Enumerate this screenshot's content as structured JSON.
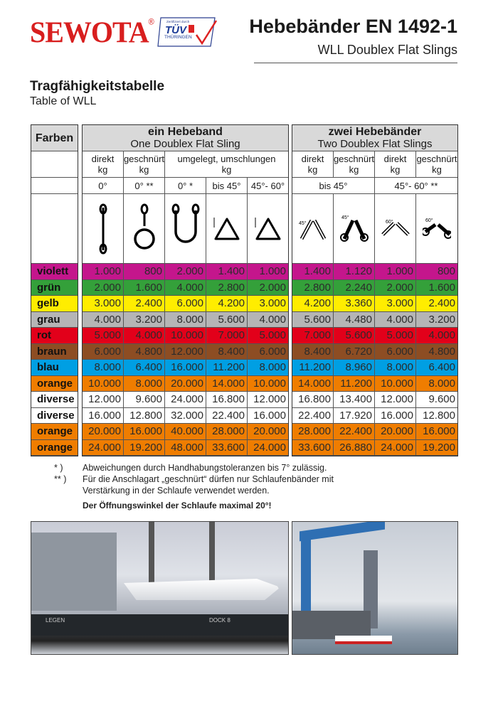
{
  "header": {
    "brand": "SEWOTA",
    "registered": "®",
    "cert_text": "Zertifiziert durch TÜV THÜRINGEN",
    "title": "Hebebänder EN 1492-1",
    "subtitle": "WLL Doublex Flat Slings"
  },
  "section": {
    "title": "Tragfähigkeitstabelle",
    "subtitle": "Table of WLL"
  },
  "table": {
    "farben_label": "Farben",
    "one": {
      "de": "ein Hebeband",
      "en": "One Doublex Flat Sling",
      "cols": [
        "direkt\nkg",
        "geschnürt\nkg",
        "umgelegt, umschlungen\nkg"
      ],
      "angles": [
        "0°",
        "0° **",
        "0° *",
        "bis 45°",
        "45°- 60°"
      ]
    },
    "two": {
      "de": "zwei Hebebänder",
      "en": "Two Doublex Flat Slings",
      "cols": [
        "direkt\nkg",
        "geschnürt\nkg",
        "direkt\nkg",
        "geschnürt\nkg"
      ],
      "angles": [
        "bis 45°",
        "45°- 60° **"
      ]
    },
    "icons": [
      "sling-straight-icon",
      "sling-choked-icon",
      "sling-basket-icon",
      "sling-basket-45-icon",
      "sling-basket-60-icon",
      "two-slings-direct-45-icon",
      "two-slings-choked-45-icon",
      "two-slings-direct-60-icon",
      "two-slings-choked-60-icon"
    ],
    "rows": [
      {
        "color": "violett",
        "hex": "#c4168c",
        "values": [
          "1.000",
          "800",
          "2.000",
          "1.400",
          "1.000",
          "1.400",
          "1.120",
          "1.000",
          "800"
        ]
      },
      {
        "color": "grün",
        "hex": "#34a03a",
        "values": [
          "2.000",
          "1.600",
          "4.000",
          "2.800",
          "2.000",
          "2.800",
          "2.240",
          "2.000",
          "1.600"
        ]
      },
      {
        "color": "gelb",
        "hex": "#ffed00",
        "values": [
          "3.000",
          "2.400",
          "6.000",
          "4.200",
          "3.000",
          "4.200",
          "3.360",
          "3.000",
          "2.400"
        ]
      },
      {
        "color": "grau",
        "hex": "#b5b5b5",
        "values": [
          "4.000",
          "3.200",
          "8.000",
          "5.600",
          "4.000",
          "5.600",
          "4.480",
          "4.000",
          "3.200"
        ]
      },
      {
        "color": "rot",
        "hex": "#e2001a",
        "values": [
          "5.000",
          "4.000",
          "10.000",
          "7.000",
          "5.000",
          "7.000",
          "5.600",
          "5.000",
          "4.000"
        ]
      },
      {
        "color": "braun",
        "hex": "#8d4d23",
        "values": [
          "6.000",
          "4.800",
          "12.000",
          "8.400",
          "6.000",
          "8.400",
          "6.720",
          "6.000",
          "4.800"
        ]
      },
      {
        "color": "blau",
        "hex": "#009fe3",
        "values": [
          "8.000",
          "6.400",
          "16.000",
          "11.200",
          "8.000",
          "11.200",
          "8.960",
          "8.000",
          "6.400"
        ]
      },
      {
        "color": "orange",
        "hex": "#ef7d00",
        "values": [
          "10.000",
          "8.000",
          "20.000",
          "14.000",
          "10.000",
          "14.000",
          "11.200",
          "10.000",
          "8.000"
        ]
      },
      {
        "color": "diverse",
        "hex": "#ffffff",
        "values": [
          "12.000",
          "9.600",
          "24.000",
          "16.800",
          "12.000",
          "16.800",
          "13.400",
          "12.000",
          "9.600"
        ]
      },
      {
        "color": "diverse",
        "hex": "#ffffff",
        "values": [
          "16.000",
          "12.800",
          "32.000",
          "22.400",
          "16.000",
          "22.400",
          "17.920",
          "16.000",
          "12.800"
        ]
      },
      {
        "color": "orange",
        "hex": "#ef7d00",
        "values": [
          "20.000",
          "16.000",
          "40.000",
          "28.000",
          "20.000",
          "28.000",
          "22.400",
          "20.000",
          "16.000"
        ]
      },
      {
        "color": "orange",
        "hex": "#ef7d00",
        "values": [
          "24.000",
          "19.200",
          "48.000",
          "33.600",
          "24.000",
          "33.600",
          "26.880",
          "24.000",
          "19.200"
        ]
      }
    ]
  },
  "footnotes": [
    {
      "mark": "*   )",
      "text": "Abweichungen durch Handhabungstoleranzen bis 7° zulässig."
    },
    {
      "mark": "** )",
      "text": "Für die Anschlagart „geschnürt“ dürfen nur Schlaufenbänder mit Verstärkung in  der Schlaufe verwendet werden."
    }
  ],
  "warning": "Der Öffnungswinkel der Schlaufe maximal 20°!",
  "photos": {
    "dock_sign": "DOCK 8",
    "hull_text": "LEGEN"
  }
}
